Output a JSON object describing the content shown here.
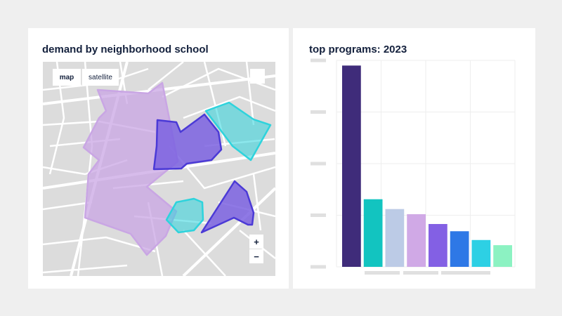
{
  "map_card": {
    "title": "demand by neighborhood school",
    "map_types": [
      "map",
      "satellite"
    ],
    "selected_map_type": "map",
    "zoom_in": "+",
    "zoom_out": "−",
    "region_colors": [
      "#c9a6e4",
      "#7b61e0",
      "#2ed3dc",
      "#4b3ad6"
    ]
  },
  "chart_card": {
    "title": "top programs: 2023"
  },
  "chart_data": {
    "type": "bar",
    "title": "top programs: 2023",
    "categories": [
      "",
      "",
      "",
      "",
      "",
      "",
      "",
      ""
    ],
    "values": [
      3.9,
      1.31,
      1.12,
      1.02,
      0.83,
      0.69,
      0.52,
      0.42
    ],
    "colors": [
      "#3f2c7a",
      "#12c4c0",
      "#bccbe6",
      "#d0a9e6",
      "#8360e4",
      "#2e78e6",
      "#2dd0e4",
      "#8cf2c2"
    ],
    "ylim": [
      0,
      4
    ],
    "grid": true,
    "xlabel": "",
    "ylabel": ""
  }
}
